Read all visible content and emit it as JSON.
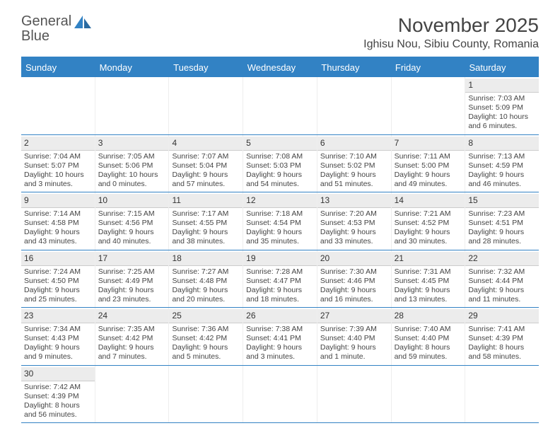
{
  "brand": {
    "part1": "General",
    "part2": "Blue"
  },
  "title": "November 2025",
  "location": "Ighisu Nou, Sibiu County, Romania",
  "colors": {
    "header_bg": "#3282c4",
    "header_text": "#ffffff",
    "body_text": "#444444",
    "daynum_bg": "#ececec",
    "border": "#3282c4"
  },
  "day_names": [
    "Sunday",
    "Monday",
    "Tuesday",
    "Wednesday",
    "Thursday",
    "Friday",
    "Saturday"
  ],
  "weeks": [
    [
      {
        "blank": true
      },
      {
        "blank": true
      },
      {
        "blank": true
      },
      {
        "blank": true
      },
      {
        "blank": true
      },
      {
        "blank": true
      },
      {
        "day": "1",
        "sunrise": "Sunrise: 7:03 AM",
        "sunset": "Sunset: 5:09 PM",
        "daylight1": "Daylight: 10 hours",
        "daylight2": "and 6 minutes."
      }
    ],
    [
      {
        "day": "2",
        "sunrise": "Sunrise: 7:04 AM",
        "sunset": "Sunset: 5:07 PM",
        "daylight1": "Daylight: 10 hours",
        "daylight2": "and 3 minutes."
      },
      {
        "day": "3",
        "sunrise": "Sunrise: 7:05 AM",
        "sunset": "Sunset: 5:06 PM",
        "daylight1": "Daylight: 10 hours",
        "daylight2": "and 0 minutes."
      },
      {
        "day": "4",
        "sunrise": "Sunrise: 7:07 AM",
        "sunset": "Sunset: 5:04 PM",
        "daylight1": "Daylight: 9 hours",
        "daylight2": "and 57 minutes."
      },
      {
        "day": "5",
        "sunrise": "Sunrise: 7:08 AM",
        "sunset": "Sunset: 5:03 PM",
        "daylight1": "Daylight: 9 hours",
        "daylight2": "and 54 minutes."
      },
      {
        "day": "6",
        "sunrise": "Sunrise: 7:10 AM",
        "sunset": "Sunset: 5:02 PM",
        "daylight1": "Daylight: 9 hours",
        "daylight2": "and 51 minutes."
      },
      {
        "day": "7",
        "sunrise": "Sunrise: 7:11 AM",
        "sunset": "Sunset: 5:00 PM",
        "daylight1": "Daylight: 9 hours",
        "daylight2": "and 49 minutes."
      },
      {
        "day": "8",
        "sunrise": "Sunrise: 7:13 AM",
        "sunset": "Sunset: 4:59 PM",
        "daylight1": "Daylight: 9 hours",
        "daylight2": "and 46 minutes."
      }
    ],
    [
      {
        "day": "9",
        "sunrise": "Sunrise: 7:14 AM",
        "sunset": "Sunset: 4:58 PM",
        "daylight1": "Daylight: 9 hours",
        "daylight2": "and 43 minutes."
      },
      {
        "day": "10",
        "sunrise": "Sunrise: 7:15 AM",
        "sunset": "Sunset: 4:56 PM",
        "daylight1": "Daylight: 9 hours",
        "daylight2": "and 40 minutes."
      },
      {
        "day": "11",
        "sunrise": "Sunrise: 7:17 AM",
        "sunset": "Sunset: 4:55 PM",
        "daylight1": "Daylight: 9 hours",
        "daylight2": "and 38 minutes."
      },
      {
        "day": "12",
        "sunrise": "Sunrise: 7:18 AM",
        "sunset": "Sunset: 4:54 PM",
        "daylight1": "Daylight: 9 hours",
        "daylight2": "and 35 minutes."
      },
      {
        "day": "13",
        "sunrise": "Sunrise: 7:20 AM",
        "sunset": "Sunset: 4:53 PM",
        "daylight1": "Daylight: 9 hours",
        "daylight2": "and 33 minutes."
      },
      {
        "day": "14",
        "sunrise": "Sunrise: 7:21 AM",
        "sunset": "Sunset: 4:52 PM",
        "daylight1": "Daylight: 9 hours",
        "daylight2": "and 30 minutes."
      },
      {
        "day": "15",
        "sunrise": "Sunrise: 7:23 AM",
        "sunset": "Sunset: 4:51 PM",
        "daylight1": "Daylight: 9 hours",
        "daylight2": "and 28 minutes."
      }
    ],
    [
      {
        "day": "16",
        "sunrise": "Sunrise: 7:24 AM",
        "sunset": "Sunset: 4:50 PM",
        "daylight1": "Daylight: 9 hours",
        "daylight2": "and 25 minutes."
      },
      {
        "day": "17",
        "sunrise": "Sunrise: 7:25 AM",
        "sunset": "Sunset: 4:49 PM",
        "daylight1": "Daylight: 9 hours",
        "daylight2": "and 23 minutes."
      },
      {
        "day": "18",
        "sunrise": "Sunrise: 7:27 AM",
        "sunset": "Sunset: 4:48 PM",
        "daylight1": "Daylight: 9 hours",
        "daylight2": "and 20 minutes."
      },
      {
        "day": "19",
        "sunrise": "Sunrise: 7:28 AM",
        "sunset": "Sunset: 4:47 PM",
        "daylight1": "Daylight: 9 hours",
        "daylight2": "and 18 minutes."
      },
      {
        "day": "20",
        "sunrise": "Sunrise: 7:30 AM",
        "sunset": "Sunset: 4:46 PM",
        "daylight1": "Daylight: 9 hours",
        "daylight2": "and 16 minutes."
      },
      {
        "day": "21",
        "sunrise": "Sunrise: 7:31 AM",
        "sunset": "Sunset: 4:45 PM",
        "daylight1": "Daylight: 9 hours",
        "daylight2": "and 13 minutes."
      },
      {
        "day": "22",
        "sunrise": "Sunrise: 7:32 AM",
        "sunset": "Sunset: 4:44 PM",
        "daylight1": "Daylight: 9 hours",
        "daylight2": "and 11 minutes."
      }
    ],
    [
      {
        "day": "23",
        "sunrise": "Sunrise: 7:34 AM",
        "sunset": "Sunset: 4:43 PM",
        "daylight1": "Daylight: 9 hours",
        "daylight2": "and 9 minutes."
      },
      {
        "day": "24",
        "sunrise": "Sunrise: 7:35 AM",
        "sunset": "Sunset: 4:42 PM",
        "daylight1": "Daylight: 9 hours",
        "daylight2": "and 7 minutes."
      },
      {
        "day": "25",
        "sunrise": "Sunrise: 7:36 AM",
        "sunset": "Sunset: 4:42 PM",
        "daylight1": "Daylight: 9 hours",
        "daylight2": "and 5 minutes."
      },
      {
        "day": "26",
        "sunrise": "Sunrise: 7:38 AM",
        "sunset": "Sunset: 4:41 PM",
        "daylight1": "Daylight: 9 hours",
        "daylight2": "and 3 minutes."
      },
      {
        "day": "27",
        "sunrise": "Sunrise: 7:39 AM",
        "sunset": "Sunset: 4:40 PM",
        "daylight1": "Daylight: 9 hours",
        "daylight2": "and 1 minute."
      },
      {
        "day": "28",
        "sunrise": "Sunrise: 7:40 AM",
        "sunset": "Sunset: 4:40 PM",
        "daylight1": "Daylight: 8 hours",
        "daylight2": "and 59 minutes."
      },
      {
        "day": "29",
        "sunrise": "Sunrise: 7:41 AM",
        "sunset": "Sunset: 4:39 PM",
        "daylight1": "Daylight: 8 hours",
        "daylight2": "and 58 minutes."
      }
    ],
    [
      {
        "day": "30",
        "sunrise": "Sunrise: 7:42 AM",
        "sunset": "Sunset: 4:39 PM",
        "daylight1": "Daylight: 8 hours",
        "daylight2": "and 56 minutes."
      },
      {
        "blank": true
      },
      {
        "blank": true
      },
      {
        "blank": true
      },
      {
        "blank": true
      },
      {
        "blank": true
      },
      {
        "blank": true
      }
    ]
  ]
}
